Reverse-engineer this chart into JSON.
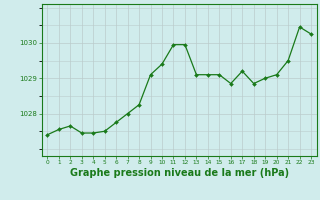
{
  "x": [
    0,
    1,
    2,
    3,
    4,
    5,
    6,
    7,
    8,
    9,
    10,
    11,
    12,
    13,
    14,
    15,
    16,
    17,
    18,
    19,
    20,
    21,
    22,
    23
  ],
  "y": [
    1027.4,
    1027.55,
    1027.65,
    1027.45,
    1027.45,
    1027.5,
    1027.75,
    1028.0,
    1028.25,
    1029.1,
    1029.4,
    1029.95,
    1029.95,
    1029.1,
    1029.1,
    1029.1,
    1028.85,
    1029.2,
    1028.85,
    1029.0,
    1029.1,
    1029.5,
    1030.45,
    1030.25
  ],
  "line_color": "#1a7a1a",
  "marker": "D",
  "marker_size": 2.0,
  "bg_color": "#d0ecec",
  "grid_color": "#bbcccc",
  "xlabel": "Graphe pression niveau de la mer (hPa)",
  "xlabel_fontsize": 7,
  "xtick_labels": [
    "0",
    "1",
    "2",
    "3",
    "4",
    "5",
    "6",
    "7",
    "8",
    "9",
    "10",
    "11",
    "12",
    "13",
    "14",
    "15",
    "16",
    "17",
    "18",
    "19",
    "20",
    "21",
    "22",
    "23"
  ],
  "ytick_values": [
    1028,
    1029,
    1030
  ],
  "ylim": [
    1026.8,
    1031.1
  ],
  "xlim": [
    -0.5,
    23.5
  ],
  "axis_label_color": "#1a7a1a",
  "frame_color": "#1a7a1a"
}
